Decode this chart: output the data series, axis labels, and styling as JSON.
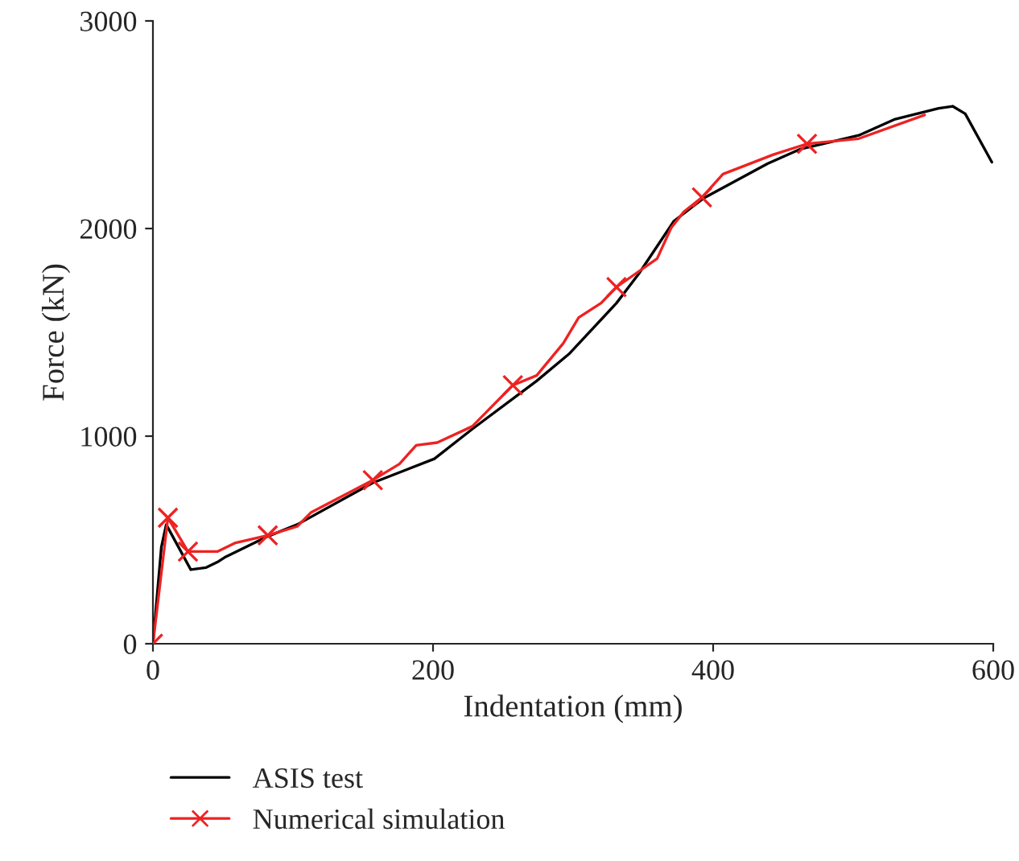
{
  "chart_data": {
    "type": "line",
    "xlabel": "Indentation (mm)",
    "ylabel": "Force (kN)",
    "xlim": [
      0,
      600
    ],
    "xticks": [
      0,
      200,
      400,
      600
    ],
    "ylim": [
      0,
      3000
    ],
    "yticks": [
      0,
      1000,
      2000,
      3000
    ],
    "grid": false,
    "legend": "bottom",
    "series": [
      {
        "name": "ASIS test",
        "color": "#000000",
        "marker": "none",
        "x": [
          0,
          6,
          9.5,
          27,
          38,
          46,
          52,
          82,
          103,
          157,
          201,
          228,
          274,
          297,
          331,
          347,
          372,
          393,
          439,
          462,
          504,
          530,
          561,
          571,
          580,
          599
        ],
        "values": [
          0,
          465,
          574,
          357,
          367,
          393,
          419,
          517,
          574,
          775,
          891,
          1034,
          1266,
          1395,
          1641,
          1783,
          2036,
          2145,
          2313,
          2382,
          2449,
          2527,
          2579,
          2589,
          2553,
          2320
        ]
      },
      {
        "name": "Numerical simulation",
        "color": "#ee2222",
        "marker": "none",
        "x": [
          0,
          10.7,
          25,
          46,
          59,
          82,
          103,
          113,
          157,
          176,
          188,
          203,
          228,
          257,
          274,
          293,
          304,
          320,
          331,
          360,
          370,
          379,
          392,
          407,
          443,
          467,
          504,
          551
        ],
        "values": [
          0,
          607,
          444,
          444,
          486,
          522,
          565,
          633,
          788,
          866,
          956,
          969,
          1047,
          1245,
          1292,
          1447,
          1571,
          1641,
          1718,
          1855,
          2003,
          2080,
          2150,
          2262,
          2356,
          2408,
          2433,
          2547
        ]
      },
      {
        "type": "scatter",
        "color": "#ee2222",
        "marker": "cross",
        "x": [
          0,
          10.7,
          25,
          82,
          157,
          257,
          331,
          392,
          467
        ],
        "values": [
          0,
          607,
          444,
          522,
          788,
          1245,
          1718,
          2150,
          2408
        ]
      }
    ]
  }
}
